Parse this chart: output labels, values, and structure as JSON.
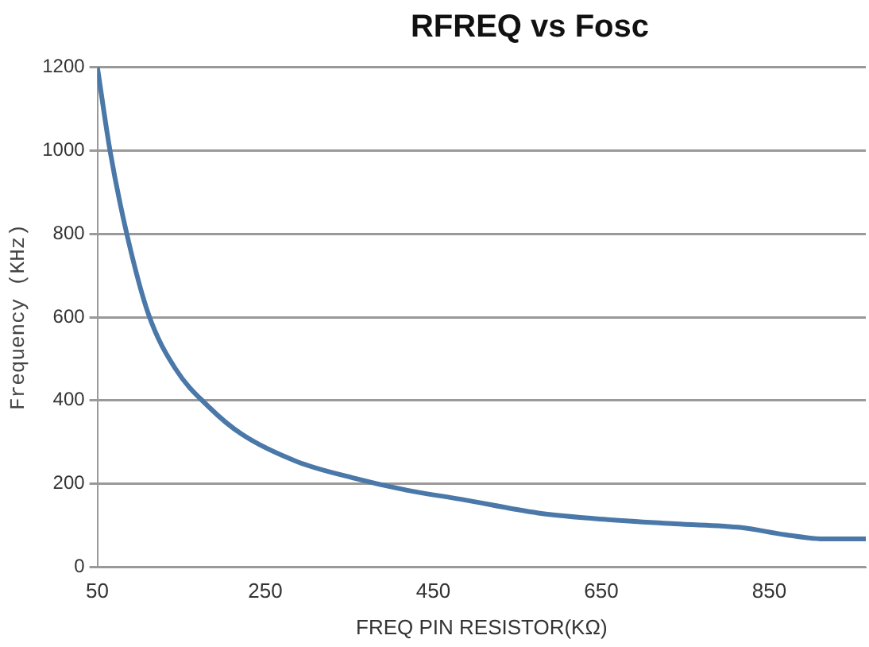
{
  "chart_data": {
    "type": "line",
    "title": "RFREQ vs Fosc",
    "xlabel": "FREQ PIN RESISTOR(KΩ)",
    "ylabel": "Frequency (KHz)",
    "x": [
      50,
      65,
      85,
      111,
      143,
      183,
      222,
      287,
      353,
      418,
      483,
      575,
      640,
      738,
      817,
      869,
      915,
      965
    ],
    "series": [
      {
        "color": "#4a78a8",
        "values": [
          1200,
          1000,
          800,
          606,
          476,
          384,
          319,
          254,
          215,
          185,
          163,
          130,
          117,
          104,
          95,
          78,
          68,
          68
        ]
      }
    ],
    "xlim": [
      50,
      965
    ],
    "xticks": [
      50,
      250,
      450,
      650,
      850
    ],
    "ylim": [
      0,
      1200
    ],
    "yticks": [
      0,
      200,
      400,
      600,
      800,
      1000,
      1200
    ],
    "grid": "y",
    "legend": false,
    "marker": "none",
    "line_style": "solid"
  }
}
